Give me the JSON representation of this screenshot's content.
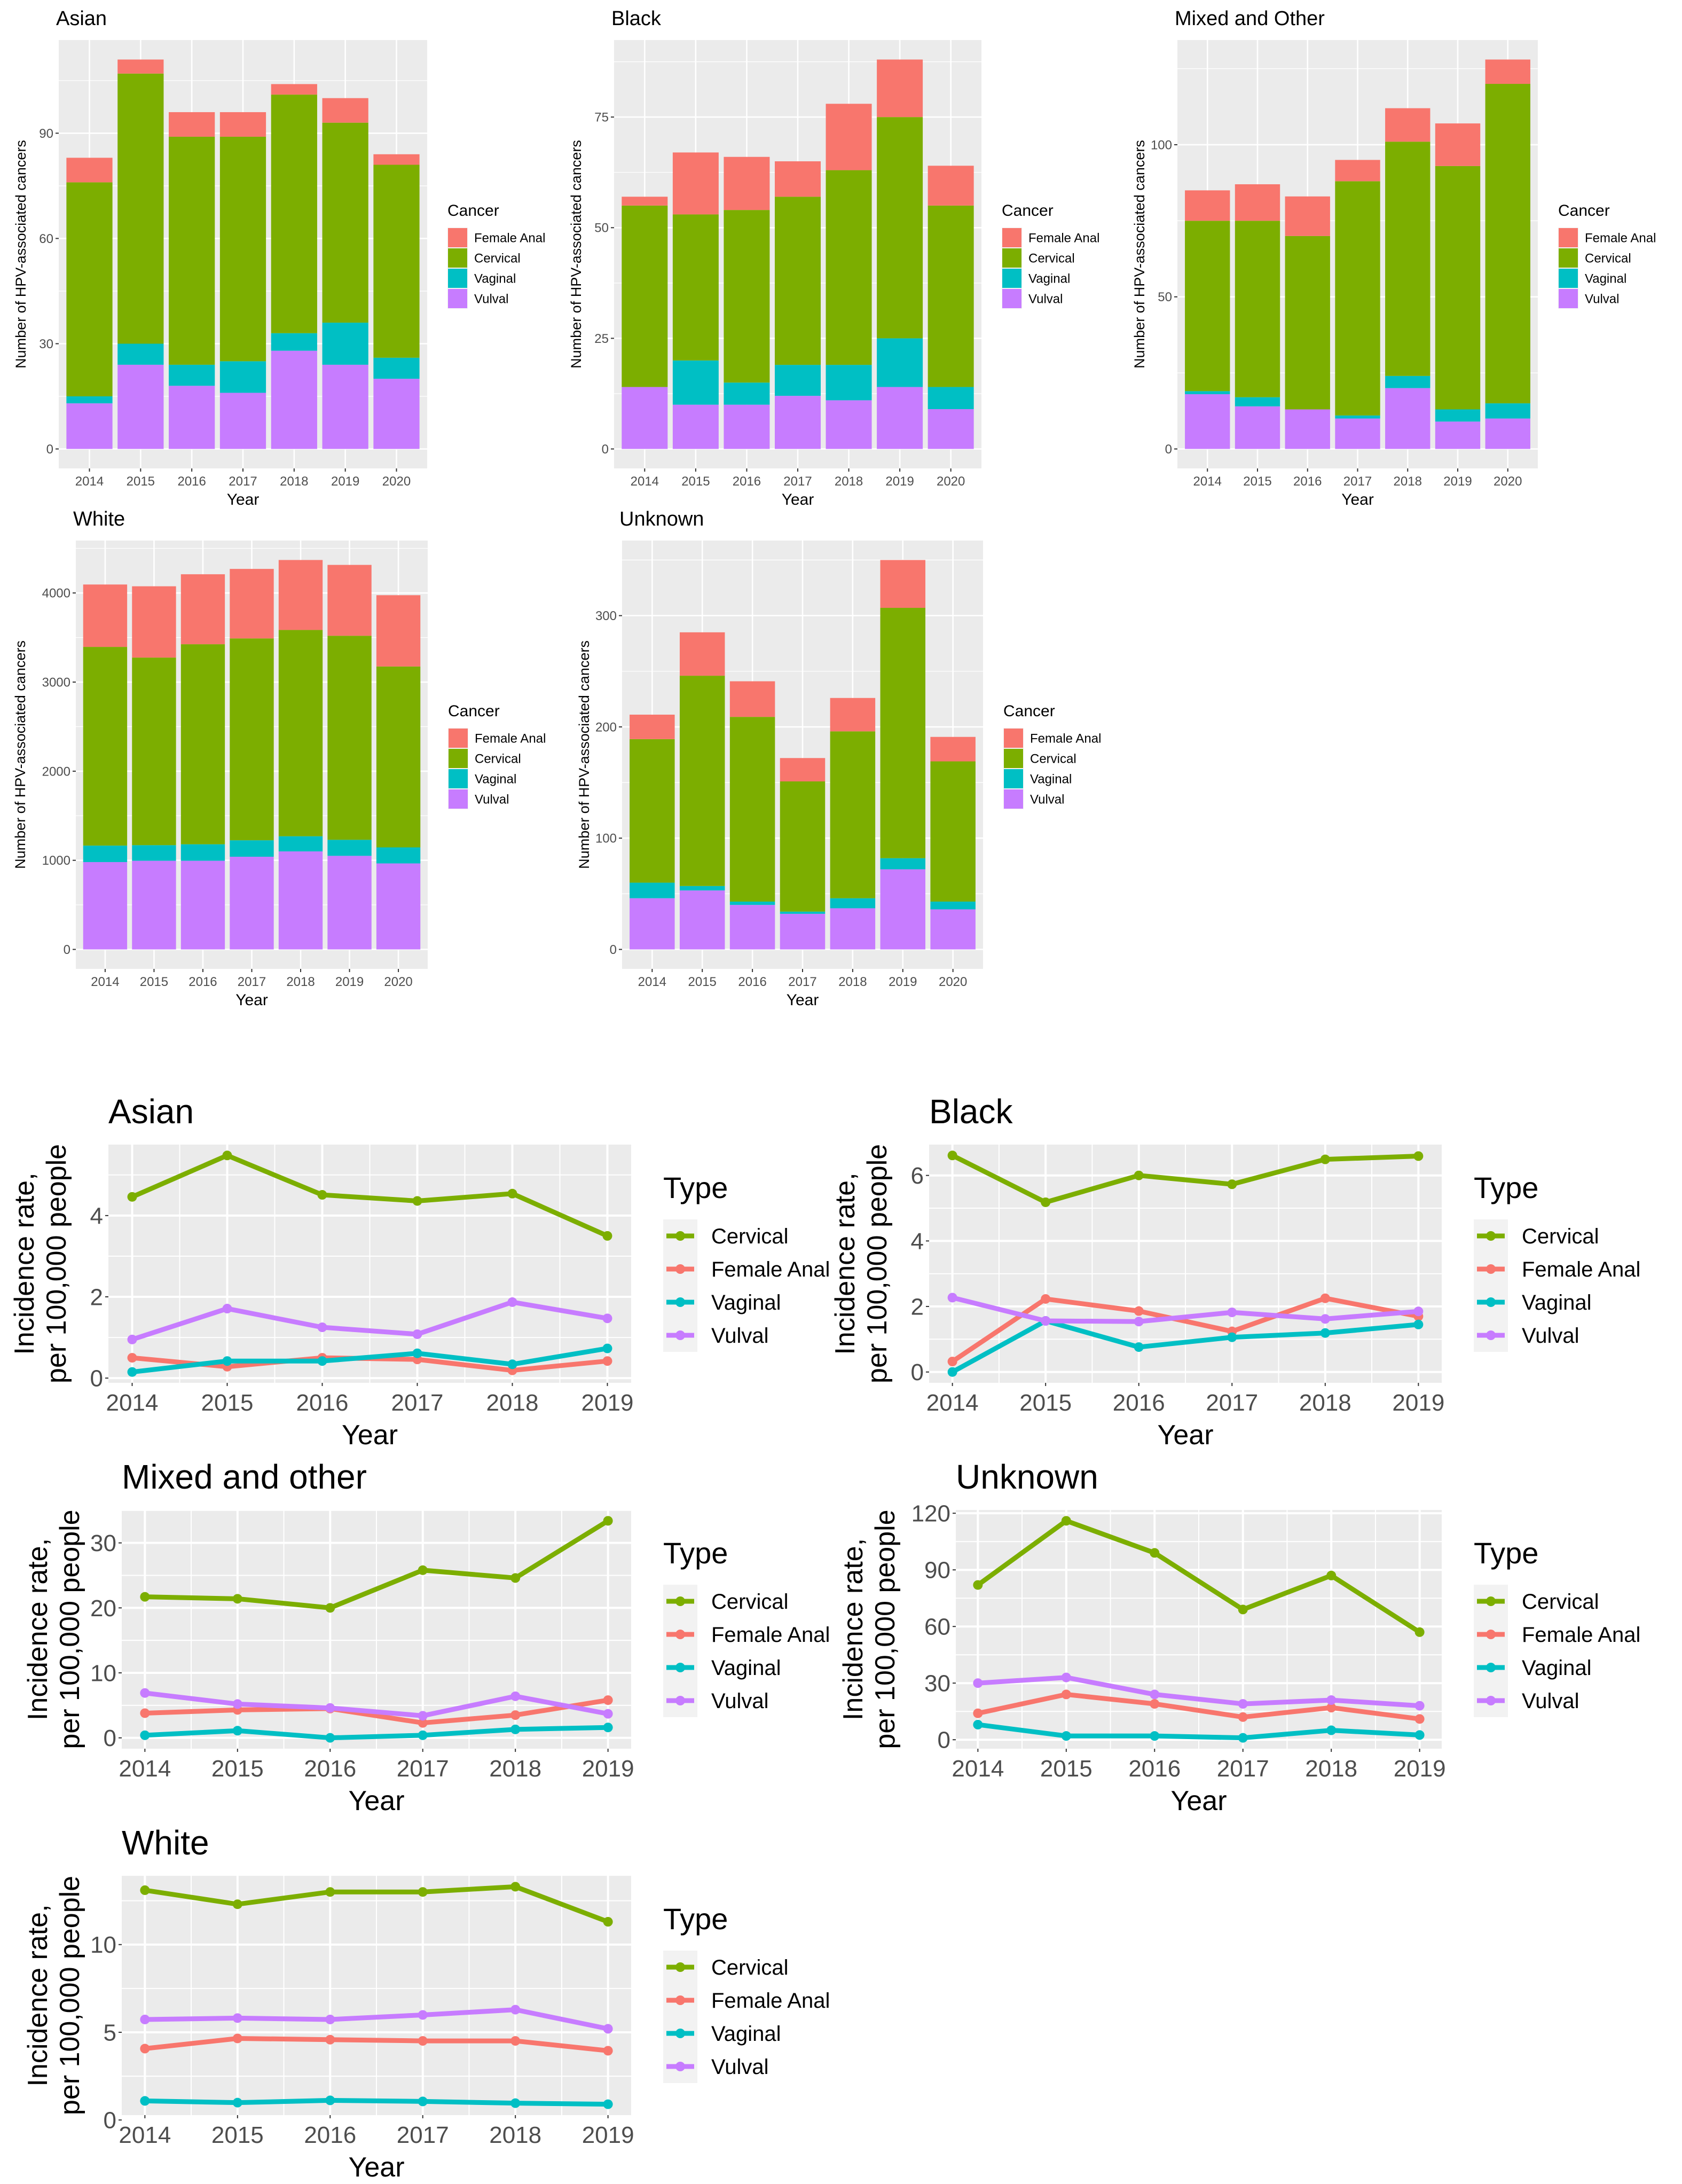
{
  "colors": {
    "Female Anal": "#F8766D",
    "Cervical": "#7CAE00",
    "Vaginal": "#00BFC4",
    "Vulval": "#C77CFF",
    "panel_bg": "#EBEBEB",
    "grid": "#FFFFFF"
  },
  "chart_data": [
    {
      "type": "bar",
      "stacked": true,
      "title": "Asian",
      "xlabel": "Year",
      "ylabel": "Number of HPV-associated cancers",
      "legend_title": "Cancer",
      "legend": [
        "Female Anal",
        "Cervical",
        "Vaginal",
        "Vulval"
      ],
      "legend_position": "right",
      "grid": true,
      "categories": [
        "2014",
        "2015",
        "2016",
        "2017",
        "2018",
        "2019",
        "2020"
      ],
      "yticks": [
        0,
        30,
        60,
        90
      ],
      "series": [
        {
          "name": "Vulval",
          "values": [
            13,
            24,
            18,
            16,
            28,
            24,
            20
          ]
        },
        {
          "name": "Vaginal",
          "values": [
            2,
            6,
            6,
            9,
            5,
            12,
            6
          ]
        },
        {
          "name": "Cervical",
          "values": [
            61,
            77,
            65,
            64,
            68,
            57,
            55
          ]
        },
        {
          "name": "Female Anal",
          "values": [
            7,
            4,
            7,
            7,
            3,
            7,
            3
          ]
        }
      ]
    },
    {
      "type": "bar",
      "stacked": true,
      "title": "Black",
      "xlabel": "Year",
      "ylabel": "Number of HPV-associated cancers",
      "legend_title": "Cancer",
      "legend": [
        "Female Anal",
        "Cervical",
        "Vaginal",
        "Vulval"
      ],
      "legend_position": "right",
      "grid": true,
      "categories": [
        "2014",
        "2015",
        "2016",
        "2017",
        "2018",
        "2019",
        "2020"
      ],
      "yticks": [
        0,
        25,
        50,
        75
      ],
      "series": [
        {
          "name": "Vulval",
          "values": [
            14,
            10,
            10,
            12,
            11,
            14,
            9
          ]
        },
        {
          "name": "Vaginal",
          "values": [
            0,
            10,
            5,
            7,
            8,
            11,
            5
          ]
        },
        {
          "name": "Cervical",
          "values": [
            41,
            33,
            39,
            38,
            44,
            50,
            41
          ]
        },
        {
          "name": "Female Anal",
          "values": [
            2,
            14,
            12,
            8,
            15,
            13,
            9
          ]
        }
      ]
    },
    {
      "type": "bar",
      "stacked": true,
      "title": "Mixed and Other",
      "xlabel": "Year",
      "ylabel": "Number of HPV-associated cancers",
      "legend_title": "Cancer",
      "legend": [
        "Female Anal",
        "Cervical",
        "Vaginal",
        "Vulval"
      ],
      "legend_position": "right",
      "grid": true,
      "categories": [
        "2014",
        "2015",
        "2016",
        "2017",
        "2018",
        "2019",
        "2020"
      ],
      "yticks": [
        0,
        50,
        100
      ],
      "series": [
        {
          "name": "Vulval",
          "values": [
            18,
            14,
            13,
            10,
            20,
            9,
            10
          ]
        },
        {
          "name": "Vaginal",
          "values": [
            1,
            3,
            0,
            1,
            4,
            4,
            5
          ]
        },
        {
          "name": "Cervical",
          "values": [
            56,
            58,
            57,
            77,
            77,
            80,
            105
          ]
        },
        {
          "name": "Female Anal",
          "values": [
            10,
            12,
            13,
            7,
            11,
            14,
            8
          ]
        }
      ]
    },
    {
      "type": "bar",
      "stacked": true,
      "title": "White",
      "xlabel": "Year",
      "ylabel": "Number of HPV-associated cancers",
      "legend_title": "Cancer",
      "legend": [
        "Female Anal",
        "Cervical",
        "Vaginal",
        "Vulval"
      ],
      "legend_position": "right",
      "grid": true,
      "categories": [
        "2014",
        "2015",
        "2016",
        "2017",
        "2018",
        "2019",
        "2020"
      ],
      "yticks": [
        0,
        1000,
        2000,
        3000,
        4000
      ],
      "series": [
        {
          "name": "Vulval",
          "values": [
            980,
            995,
            995,
            1040,
            1100,
            1050,
            965
          ]
        },
        {
          "name": "Vaginal",
          "values": [
            185,
            175,
            185,
            185,
            170,
            180,
            180
          ]
        },
        {
          "name": "Cervical",
          "values": [
            2230,
            2105,
            2245,
            2265,
            2315,
            2290,
            2030
          ]
        },
        {
          "name": "Female Anal",
          "values": [
            700,
            800,
            785,
            780,
            785,
            795,
            800
          ]
        }
      ]
    },
    {
      "type": "bar",
      "stacked": true,
      "title": "Unknown",
      "xlabel": "Year",
      "ylabel": "Number of HPV-associated cancers",
      "legend_title": "Cancer",
      "legend": [
        "Female Anal",
        "Cervical",
        "Vaginal",
        "Vulval"
      ],
      "legend_position": "right",
      "grid": true,
      "categories": [
        "2014",
        "2015",
        "2016",
        "2017",
        "2018",
        "2019",
        "2020"
      ],
      "yticks": [
        0,
        100,
        200,
        300
      ],
      "series": [
        {
          "name": "Vulval",
          "values": [
            46,
            53,
            40,
            32,
            37,
            72,
            36
          ]
        },
        {
          "name": "Vaginal",
          "values": [
            14,
            4,
            3,
            2,
            9,
            10,
            7
          ]
        },
        {
          "name": "Cervical",
          "values": [
            129,
            189,
            166,
            117,
            150,
            225,
            126
          ]
        },
        {
          "name": "Female Anal",
          "values": [
            22,
            39,
            32,
            21,
            30,
            43,
            22
          ]
        }
      ]
    },
    {
      "type": "line",
      "title": "Asian",
      "xlabel": "Year",
      "ylabel": [
        "Incidence rate,",
        "per 100,000 people"
      ],
      "legend_title": "Type",
      "legend_position": "right",
      "grid": true,
      "x": [
        2014,
        2015,
        2016,
        2017,
        2018,
        2019
      ],
      "yticks": [
        0,
        2,
        4
      ],
      "series": [
        {
          "name": "Cervical",
          "values": [
            4.46,
            5.48,
            4.51,
            4.36,
            4.54,
            3.5
          ]
        },
        {
          "name": "Female Anal",
          "values": [
            0.5,
            0.28,
            0.5,
            0.46,
            0.19,
            0.42
          ]
        },
        {
          "name": "Vaginal",
          "values": [
            0.15,
            0.42,
            0.42,
            0.61,
            0.34,
            0.73
          ]
        },
        {
          "name": "Vulval",
          "values": [
            0.95,
            1.71,
            1.25,
            1.08,
            1.87,
            1.47
          ]
        }
      ]
    },
    {
      "type": "line",
      "title": "Black",
      "xlabel": "Year",
      "ylabel": [
        "Incidence rate,",
        "per 100,000 people"
      ],
      "legend_title": "Type",
      "legend_position": "right",
      "grid": true,
      "x": [
        2014,
        2015,
        2016,
        2017,
        2018,
        2019
      ],
      "yticks": [
        0,
        2,
        4,
        6
      ],
      "series": [
        {
          "name": "Cervical",
          "values": [
            6.61,
            5.18,
            6.0,
            5.73,
            6.49,
            6.59
          ]
        },
        {
          "name": "Female Anal",
          "values": [
            0.32,
            2.23,
            1.86,
            1.24,
            2.25,
            1.7
          ]
        },
        {
          "name": "Vaginal",
          "values": [
            0,
            1.56,
            0.76,
            1.06,
            1.19,
            1.45
          ]
        },
        {
          "name": "Vulval",
          "values": [
            2.27,
            1.56,
            1.54,
            1.82,
            1.62,
            1.85
          ]
        }
      ]
    },
    {
      "type": "line",
      "title": "Mixed and other",
      "xlabel": "Year",
      "ylabel": [
        "Incidence rate,",
        "per 100,000 people"
      ],
      "legend_title": "Type",
      "legend_position": "right",
      "grid": true,
      "x": [
        2014,
        2015,
        2016,
        2017,
        2018,
        2019
      ],
      "yticks": [
        0,
        10,
        20,
        30
      ],
      "series": [
        {
          "name": "Cervical",
          "values": [
            21.7,
            21.4,
            20.0,
            25.8,
            24.6,
            33.4
          ]
        },
        {
          "name": "Female Anal",
          "values": [
            3.8,
            4.3,
            4.5,
            2.3,
            3.5,
            5.8
          ]
        },
        {
          "name": "Vaginal",
          "values": [
            0.4,
            1.1,
            0,
            0.4,
            1.3,
            1.6
          ]
        },
        {
          "name": "Vulval",
          "values": [
            6.9,
            5.2,
            4.6,
            3.4,
            6.4,
            3.7
          ]
        }
      ]
    },
    {
      "type": "line",
      "title": "Unknown",
      "xlabel": "Year",
      "ylabel": [
        "Incidence rate,",
        "per 100,000 people"
      ],
      "legend_title": "Type",
      "legend_position": "right",
      "grid": true,
      "x": [
        2014,
        2015,
        2016,
        2017,
        2018,
        2019
      ],
      "yticks": [
        0,
        30,
        60,
        90,
        120
      ],
      "series": [
        {
          "name": "Cervical",
          "values": [
            82,
            116,
            99,
            69,
            87,
            57
          ]
        },
        {
          "name": "Female Anal",
          "values": [
            14,
            24,
            19,
            12,
            17,
            11
          ]
        },
        {
          "name": "Vaginal",
          "values": [
            8,
            2,
            2,
            1,
            5,
            2.5
          ]
        },
        {
          "name": "Vulval",
          "values": [
            30,
            33,
            24,
            19,
            21,
            18
          ]
        }
      ]
    },
    {
      "type": "line",
      "title": "White",
      "xlabel": "Year",
      "ylabel": [
        "Incidence rate,",
        "per 100,000 people"
      ],
      "legend_title": "Type",
      "legend_position": "right",
      "grid": true,
      "x": [
        2014,
        2015,
        2016,
        2017,
        2018,
        2019
      ],
      "yticks": [
        0,
        5,
        10
      ],
      "series": [
        {
          "name": "Cervical",
          "values": [
            13.1,
            12.3,
            13.0,
            13.0,
            13.3,
            11.3
          ]
        },
        {
          "name": "Female Anal",
          "values": [
            4.07,
            4.65,
            4.58,
            4.51,
            4.51,
            3.95
          ]
        },
        {
          "name": "Vaginal",
          "values": [
            1.09,
            0.99,
            1.12,
            1.06,
            0.96,
            0.9
          ]
        },
        {
          "name": "Vulval",
          "values": [
            5.73,
            5.81,
            5.73,
            5.99,
            6.29,
            5.2
          ]
        }
      ]
    }
  ]
}
